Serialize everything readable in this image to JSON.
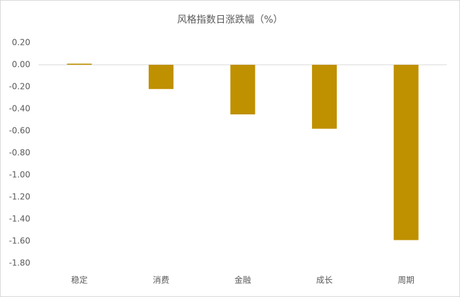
{
  "chart_data": {
    "type": "bar",
    "title": "风格指数日涨跌幅（%）",
    "categories": [
      "稳定",
      "消费",
      "金融",
      "成长",
      "周期"
    ],
    "values": [
      0.01,
      -0.22,
      -0.45,
      -0.58,
      -1.59
    ],
    "color": "#bf9000",
    "ylim": [
      -1.8,
      0.2
    ],
    "yticks": [
      {
        "value": 0.2,
        "label": "0.20"
      },
      {
        "value": 0,
        "label": "0.00"
      },
      {
        "value": -0.2,
        "label": "-0.20"
      },
      {
        "value": -0.4,
        "label": "-0.40"
      },
      {
        "value": -0.6,
        "label": "-0.60"
      },
      {
        "value": -0.8,
        "label": "-0.80"
      },
      {
        "value": -1,
        "label": "-1.00"
      },
      {
        "value": -1.2,
        "label": "-1.20"
      },
      {
        "value": -1.4,
        "label": "-1.40"
      },
      {
        "value": -1.6,
        "label": "-1.60"
      },
      {
        "value": -1.8,
        "label": "-1.80"
      }
    ],
    "grid": false
  }
}
